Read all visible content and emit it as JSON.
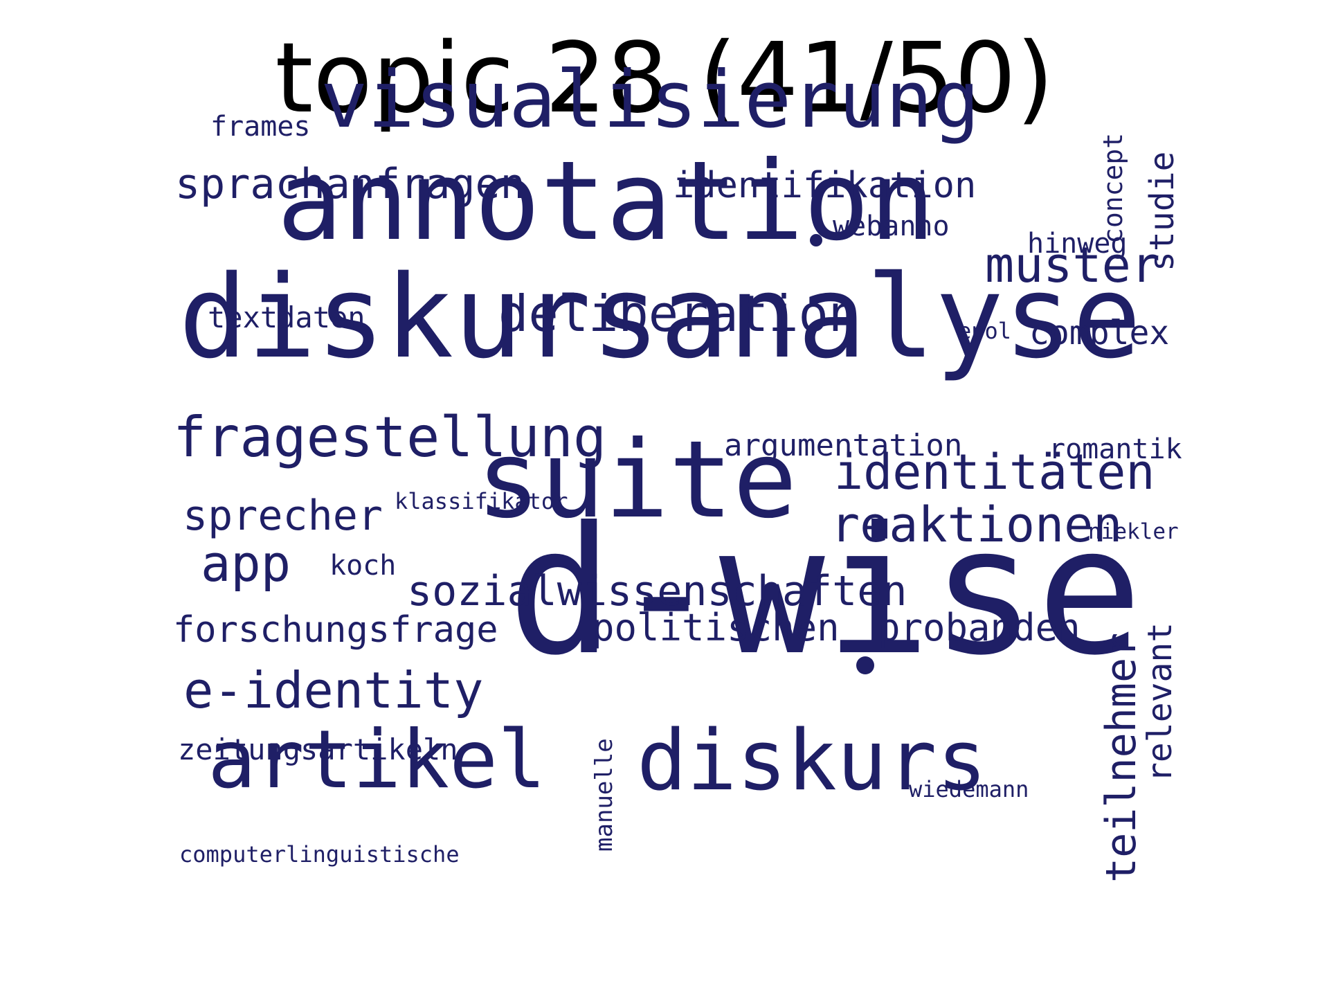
{
  "title": "topic 28 (41/50)",
  "word_color": "#1f1f66",
  "title_color": "#000000",
  "words": [
    {
      "text": "d-wise",
      "orientation": "horizontal"
    },
    {
      "text": "diskursanalyse",
      "orientation": "horizontal"
    },
    {
      "text": "annotation",
      "orientation": "horizontal"
    },
    {
      "text": "suite",
      "orientation": "horizontal"
    },
    {
      "text": "visualisierung",
      "orientation": "horizontal"
    },
    {
      "text": "diskurs",
      "orientation": "horizontal"
    },
    {
      "text": "artikel",
      "orientation": "horizontal"
    },
    {
      "text": "fragestellung",
      "orientation": "horizontal"
    },
    {
      "text": "deliberation",
      "orientation": "horizontal"
    },
    {
      "text": "identitäten",
      "orientation": "horizontal"
    },
    {
      "text": "reaktionen",
      "orientation": "horizontal"
    },
    {
      "text": "muster",
      "orientation": "horizontal"
    },
    {
      "text": "sprachanfragen",
      "orientation": "horizontal"
    },
    {
      "text": "teilnehmer",
      "orientation": "vertical"
    },
    {
      "text": "e-identity",
      "orientation": "horizontal"
    },
    {
      "text": "app",
      "orientation": "horizontal"
    },
    {
      "text": "sozialwissenschaften",
      "orientation": "horizontal"
    },
    {
      "text": "sprecher",
      "orientation": "horizontal"
    },
    {
      "text": "identifikation",
      "orientation": "horizontal"
    },
    {
      "text": "politischen",
      "orientation": "horizontal"
    },
    {
      "text": "probanden",
      "orientation": "horizontal"
    },
    {
      "text": "forschungsfrage",
      "orientation": "horizontal"
    },
    {
      "text": "relevant",
      "orientation": "vertical"
    },
    {
      "text": "studie",
      "orientation": "vertical"
    },
    {
      "text": "complex",
      "orientation": "horizontal"
    },
    {
      "text": "argumentation",
      "orientation": "horizontal"
    },
    {
      "text": "manuelle",
      "orientation": "vertical"
    },
    {
      "text": "zeitungsartikeln",
      "orientation": "horizontal"
    },
    {
      "text": "textdaten",
      "orientation": "horizontal"
    },
    {
      "text": "romantik",
      "orientation": "horizontal"
    },
    {
      "text": "concept",
      "orientation": "vertical"
    },
    {
      "text": "hinweg",
      "orientation": "horizontal"
    },
    {
      "text": "webanno",
      "orientation": "horizontal"
    },
    {
      "text": "koch",
      "orientation": "horizontal"
    },
    {
      "text": "frames",
      "orientation": "horizontal"
    },
    {
      "text": "klassifikator",
      "orientation": "horizontal"
    },
    {
      "text": "wiedemann",
      "orientation": "horizontal"
    },
    {
      "text": "computerlinguistische",
      "orientation": "horizontal"
    },
    {
      "text": "niekler",
      "orientation": "horizontal"
    },
    {
      "text": "epol",
      "orientation": "horizontal"
    }
  ]
}
